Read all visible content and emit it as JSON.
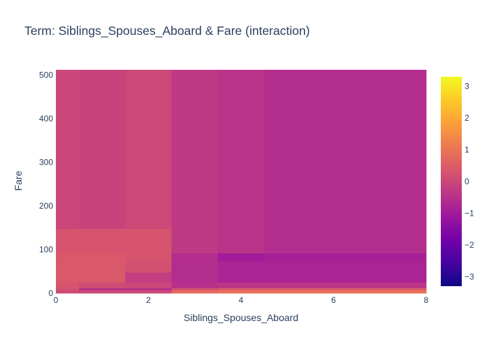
{
  "chart_data": {
    "type": "heatmap",
    "title": "Term: Siblings_Spouses_Aboard & Fare (interaction)",
    "xlabel": "Siblings_Spouses_Aboard",
    "ylabel": "Fare",
    "xlim": [
      0,
      8
    ],
    "ylim": [
      0,
      512
    ],
    "xticks": [
      0,
      2,
      4,
      6,
      8
    ],
    "yticks": [
      0,
      100,
      200,
      300,
      400,
      500
    ],
    "colorbar": {
      "range": [
        -3.3,
        3.3
      ],
      "ticks": [
        -3,
        -2,
        -1,
        0,
        1,
        2,
        3
      ],
      "colorscale": [
        "#0d0887",
        "#46039f",
        "#7201a8",
        "#9c179e",
        "#bd3786",
        "#d8576b",
        "#ed7953",
        "#fb9f3a",
        "#fdca26",
        "#f0f921"
      ]
    },
    "x_edges": [
      0,
      0.5,
      1.5,
      2.5,
      3.5,
      4.5,
      8
    ],
    "y_edges": [
      0,
      7,
      12,
      25,
      48,
      75,
      92,
      148,
      512
    ],
    "z": [
      [
        0.1,
        0.05,
        0.05,
        0.8,
        0.9,
        0.9
      ],
      [
        0.2,
        -0.5,
        -0.5,
        0.3,
        0.5,
        0.5
      ],
      [
        0.3,
        0.1,
        0.0,
        -0.5,
        -0.4,
        -0.4
      ],
      [
        0.4,
        0.4,
        -0.2,
        -0.6,
        -0.8,
        -0.8
      ],
      [
        0.4,
        0.4,
        0.2,
        -0.6,
        -0.8,
        -0.8
      ],
      [
        0.4,
        0.4,
        0.3,
        -0.6,
        -1.0,
        -0.9
      ],
      [
        0.3,
        0.3,
        0.3,
        -0.3,
        -0.45,
        -0.6
      ],
      [
        0.0,
        -0.1,
        0.05,
        -0.3,
        -0.45,
        -0.6
      ]
    ]
  }
}
